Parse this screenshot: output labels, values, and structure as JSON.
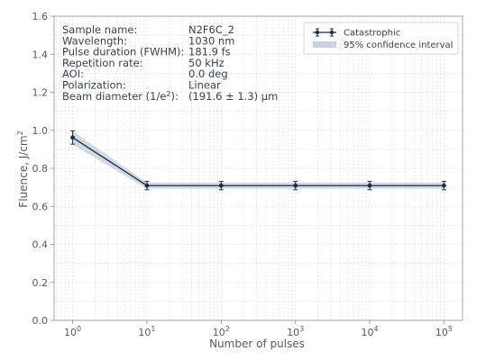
{
  "chart_data": {
    "type": "line",
    "xscale": "log",
    "x": [
      1,
      10,
      100,
      1000,
      10000,
      100000
    ],
    "x_tick_labels": [
      {
        "base": "10",
        "exp": "0"
      },
      {
        "base": "10",
        "exp": "1"
      },
      {
        "base": "10",
        "exp": "2"
      },
      {
        "base": "10",
        "exp": "3"
      },
      {
        "base": "10",
        "exp": "4"
      },
      {
        "base": "10",
        "exp": "5"
      }
    ],
    "y_ticks": [
      "0.0",
      "0.2",
      "0.4",
      "0.6",
      "0.8",
      "1.0",
      "1.2",
      "1.4",
      "1.6"
    ],
    "ylim": [
      0,
      1.6
    ],
    "xlim_decades": [
      -0.25,
      5.25
    ],
    "xlabel": "Number of pulses",
    "ylabel": "Fluence, J/cm",
    "ylabel_sup": "2",
    "grid": true,
    "legend_position": "top-right",
    "series": [
      {
        "name": "Catastrophic",
        "values": [
          0.962,
          0.709,
          0.709,
          0.709,
          0.709,
          0.709
        ],
        "errors": [
          0.035,
          0.022,
          0.022,
          0.022,
          0.022,
          0.022
        ],
        "color": "#1c2e48"
      }
    ],
    "confidence_band": {
      "name": "95% confidence interval",
      "lower": [
        0.925,
        0.693,
        0.693,
        0.693,
        0.693,
        0.693
      ],
      "upper": [
        0.995,
        0.725,
        0.725,
        0.725,
        0.725,
        0.725
      ],
      "color": "#c9d2de"
    },
    "info": [
      {
        "key": "Sample name:",
        "value": "N2F6C_2"
      },
      {
        "key": "Wavelength:",
        "value": "1030 nm"
      },
      {
        "key": "Pulse duration (FWHM):",
        "value": "181.9 fs"
      },
      {
        "key": "Repetition rate:",
        "value": "50 kHz"
      },
      {
        "key": "AOI:",
        "value": "0.0 deg"
      },
      {
        "key": "Polarization:",
        "value": "Linear"
      },
      {
        "key": "Beam diameter (1/e",
        "key_sup": "2",
        "key_suffix": "):",
        "value": "(191.6 ± 1.3) μm"
      }
    ]
  }
}
